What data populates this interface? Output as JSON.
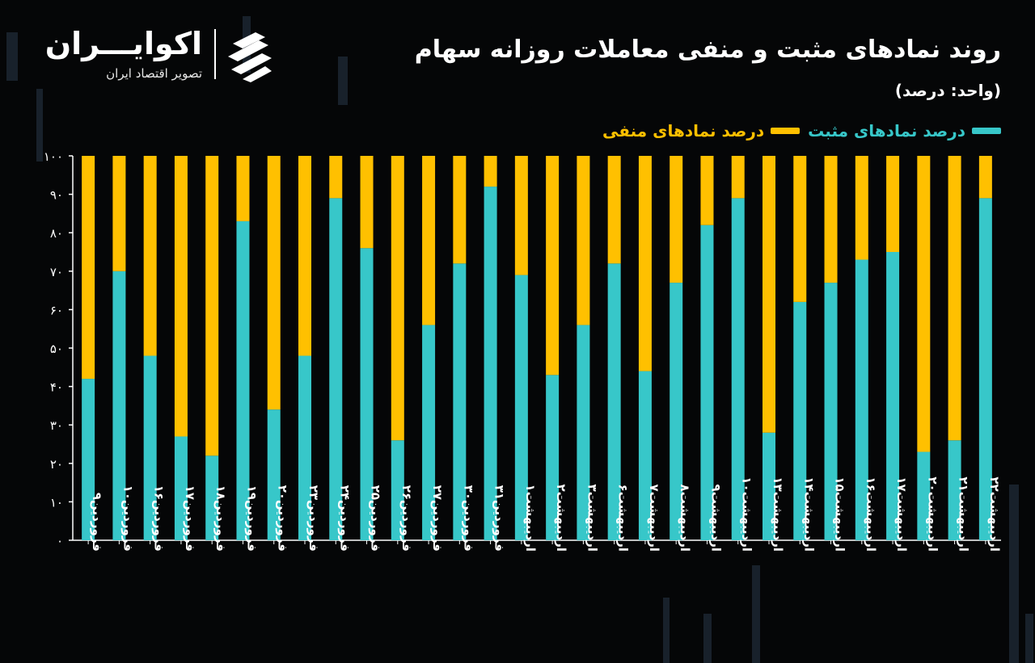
{
  "header": {
    "title": "روند نمادهای مثبت و منفی معاملات روزانه سهام",
    "unit": "(واحد: درصد)"
  },
  "logo": {
    "name": "اکوایـــران",
    "tagline": "تصویر اقتصاد ایران"
  },
  "legend": {
    "positive_label": "درصد نمادهای مثبت",
    "negative_label": "درصد نمادهای منفی"
  },
  "colors": {
    "positive": "#37c7c9",
    "negative": "#ffc000",
    "background": "#050607",
    "axis": "#ffffff"
  },
  "chart_data": {
    "type": "bar",
    "stacked": true,
    "title": "روند نمادهای مثبت و منفی معاملات روزانه سهام",
    "ylabel": "(واحد: درصد)",
    "ylim": [
      0,
      100
    ],
    "yticks": [
      "۰",
      "۱۰",
      "۲۰",
      "۳۰",
      "۴۰",
      "۵۰",
      "۶۰",
      "۷۰",
      "۸۰",
      "۹۰",
      "۱۰۰"
    ],
    "legend_position": "top-right",
    "grid": false,
    "categories": [
      "فروردین۹",
      "فروردین۱۰",
      "فروردین۱۶",
      "فروردین۱۷",
      "فروردین۱۸",
      "فروردین۱۹",
      "فروردین۲۰",
      "فروردین۲۳",
      "فروردین۲۴",
      "فروردین۲۵",
      "فروردین۲۶",
      "فروردین۲۷",
      "فروردین۳۰",
      "فروردین۳۱",
      "اردیبهشت۱",
      "اردیبهشت۲",
      "اردیبهشت۳",
      "اردیبهشت۶",
      "اردیبهشت۷",
      "اردیبهشت۸",
      "اردیبهشت۹",
      "اردیبهشت۱۰",
      "اردیبهشت۱۳",
      "اردیبهشت۱۴",
      "اردیبهشت۱۵",
      "اردیبهشت۱۶",
      "اردیبهشت۱۷",
      "اردیبهشت۲۰",
      "اردیبهشت۲۱",
      "اردیبهشت۲۲"
    ],
    "series": [
      {
        "name": "درصد نمادهای مثبت",
        "values": [
          42,
          70,
          48,
          27,
          22,
          83,
          34,
          48,
          89,
          76,
          26,
          56,
          72,
          92,
          69,
          43,
          56,
          72,
          44,
          67,
          82,
          89,
          28,
          62,
          67,
          73,
          75,
          23,
          26,
          89
        ]
      },
      {
        "name": "درصد نمادهای منفی",
        "values": [
          58,
          30,
          52,
          73,
          78,
          17,
          66,
          52,
          11,
          24,
          74,
          44,
          28,
          8,
          31,
          57,
          44,
          28,
          56,
          33,
          18,
          11,
          72,
          38,
          33,
          27,
          25,
          77,
          74,
          11
        ]
      }
    ]
  }
}
